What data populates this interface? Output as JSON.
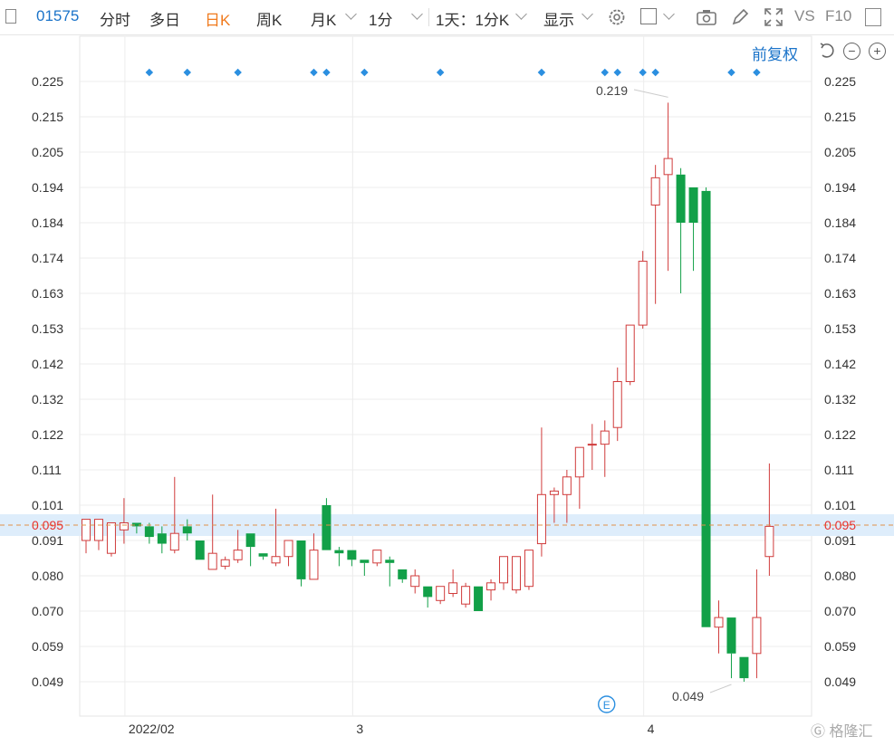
{
  "toolbar": {
    "code": "01575",
    "tabs": [
      "分时",
      "多日",
      "日K",
      "周K",
      "月K"
    ],
    "active_tab": "日K",
    "period": "1分",
    "range": "1天：1分K",
    "display": "显示",
    "vs": "VS",
    "f10": "F10"
  },
  "adjust_label": "前复权",
  "watermark": "格隆汇",
  "colors": {
    "up": "#d03b3b",
    "down": "#12a048",
    "grid": "#ececec",
    "current": "#e8322e",
    "marker": "#2b8fe0"
  },
  "chart_data": {
    "type": "candlestick",
    "y_ticks": [
      "0.225",
      "0.215",
      "0.205",
      "0.194",
      "0.184",
      "0.174",
      "0.163",
      "0.153",
      "0.142",
      "0.132",
      "0.122",
      "0.111",
      "0.101",
      "0.091",
      "0.080",
      "0.070",
      "0.059",
      "0.049"
    ],
    "x_labels": [
      {
        "label": "2022/02",
        "index": 3
      },
      {
        "label": "3",
        "index": 21
      },
      {
        "label": "4",
        "index": 44
      }
    ],
    "current_price": "0.095",
    "annotations": [
      {
        "text": "0.219",
        "index": 46
      },
      {
        "text": "0.049",
        "index": 51
      }
    ],
    "event_marker": {
      "text": "E",
      "index": 42
    },
    "marker_indices": [
      5,
      8,
      12,
      18,
      19,
      22,
      28,
      36,
      41,
      42,
      44,
      45,
      51,
      53
    ],
    "candles": [
      {
        "o": 0.091,
        "h": 0.097,
        "l": 0.087,
        "c": 0.097
      },
      {
        "o": 0.091,
        "h": 0.097,
        "l": 0.088,
        "c": 0.097
      },
      {
        "o": 0.087,
        "h": 0.096,
        "l": 0.086,
        "c": 0.096
      },
      {
        "o": 0.094,
        "h": 0.103,
        "l": 0.09,
        "c": 0.096
      },
      {
        "o": 0.096,
        "h": 0.096,
        "l": 0.093,
        "c": 0.095
      },
      {
        "o": 0.095,
        "h": 0.096,
        "l": 0.09,
        "c": 0.092
      },
      {
        "o": 0.093,
        "h": 0.095,
        "l": 0.087,
        "c": 0.09
      },
      {
        "o": 0.088,
        "h": 0.109,
        "l": 0.087,
        "c": 0.093
      },
      {
        "o": 0.095,
        "h": 0.097,
        "l": 0.091,
        "c": 0.093
      },
      {
        "o": 0.091,
        "h": 0.091,
        "l": 0.085,
        "c": 0.085
      },
      {
        "o": 0.082,
        "h": 0.104,
        "l": 0.082,
        "c": 0.087
      },
      {
        "o": 0.083,
        "h": 0.086,
        "l": 0.082,
        "c": 0.085
      },
      {
        "o": 0.085,
        "h": 0.094,
        "l": 0.084,
        "c": 0.088
      },
      {
        "o": 0.093,
        "h": 0.093,
        "l": 0.083,
        "c": 0.089
      },
      {
        "o": 0.087,
        "h": 0.087,
        "l": 0.085,
        "c": 0.086
      },
      {
        "o": 0.084,
        "h": 0.1,
        "l": 0.083,
        "c": 0.086
      },
      {
        "o": 0.086,
        "h": 0.091,
        "l": 0.083,
        "c": 0.091
      },
      {
        "o": 0.091,
        "h": 0.091,
        "l": 0.077,
        "c": 0.079
      },
      {
        "o": 0.079,
        "h": 0.093,
        "l": 0.079,
        "c": 0.088
      },
      {
        "o": 0.101,
        "h": 0.103,
        "l": 0.088,
        "c": 0.088
      },
      {
        "o": 0.088,
        "h": 0.089,
        "l": 0.083,
        "c": 0.087
      },
      {
        "o": 0.088,
        "h": 0.088,
        "l": 0.083,
        "c": 0.085
      },
      {
        "o": 0.085,
        "h": 0.085,
        "l": 0.08,
        "c": 0.084
      },
      {
        "o": 0.084,
        "h": 0.088,
        "l": 0.083,
        "c": 0.088
      },
      {
        "o": 0.085,
        "h": 0.086,
        "l": 0.077,
        "c": 0.084
      },
      {
        "o": 0.082,
        "h": 0.082,
        "l": 0.078,
        "c": 0.079
      },
      {
        "o": 0.077,
        "h": 0.082,
        "l": 0.075,
        "c": 0.08
      },
      {
        "o": 0.077,
        "h": 0.077,
        "l": 0.071,
        "c": 0.074
      },
      {
        "o": 0.073,
        "h": 0.077,
        "l": 0.072,
        "c": 0.077
      },
      {
        "o": 0.075,
        "h": 0.082,
        "l": 0.074,
        "c": 0.078
      },
      {
        "o": 0.072,
        "h": 0.078,
        "l": 0.071,
        "c": 0.077
      },
      {
        "o": 0.077,
        "h": 0.077,
        "l": 0.07,
        "c": 0.07
      },
      {
        "o": 0.076,
        "h": 0.079,
        "l": 0.073,
        "c": 0.078
      },
      {
        "o": 0.078,
        "h": 0.086,
        "l": 0.076,
        "c": 0.086
      },
      {
        "o": 0.076,
        "h": 0.086,
        "l": 0.075,
        "c": 0.086
      },
      {
        "o": 0.077,
        "h": 0.088,
        "l": 0.076,
        "c": 0.088
      },
      {
        "o": 0.09,
        "h": 0.124,
        "l": 0.086,
        "c": 0.104
      },
      {
        "o": 0.104,
        "h": 0.106,
        "l": 0.096,
        "c": 0.105
      },
      {
        "o": 0.104,
        "h": 0.111,
        "l": 0.096,
        "c": 0.109
      },
      {
        "o": 0.109,
        "h": 0.118,
        "l": 0.1,
        "c": 0.118
      },
      {
        "o": 0.119,
        "h": 0.125,
        "l": 0.111,
        "c": 0.119
      },
      {
        "o": 0.119,
        "h": 0.126,
        "l": 0.109,
        "c": 0.123
      },
      {
        "o": 0.124,
        "h": 0.141,
        "l": 0.12,
        "c": 0.137
      },
      {
        "o": 0.137,
        "h": 0.154,
        "l": 0.136,
        "c": 0.154
      },
      {
        "o": 0.154,
        "h": 0.176,
        "l": 0.153,
        "c": 0.173
      },
      {
        "o": 0.189,
        "h": 0.201,
        "l": 0.16,
        "c": 0.197
      },
      {
        "o": 0.198,
        "h": 0.219,
        "l": 0.17,
        "c": 0.203
      },
      {
        "o": 0.198,
        "h": 0.2,
        "l": 0.163,
        "c": 0.184
      },
      {
        "o": 0.194,
        "h": 0.194,
        "l": 0.17,
        "c": 0.184
      },
      {
        "o": 0.193,
        "h": 0.194,
        "l": 0.065,
        "c": 0.065
      },
      {
        "o": 0.065,
        "h": 0.073,
        "l": 0.057,
        "c": 0.068
      },
      {
        "o": 0.068,
        "h": 0.068,
        "l": 0.05,
        "c": 0.057
      },
      {
        "o": 0.056,
        "h": 0.056,
        "l": 0.049,
        "c": 0.05
      },
      {
        "o": 0.057,
        "h": 0.082,
        "l": 0.05,
        "c": 0.068
      },
      {
        "o": 0.086,
        "h": 0.113,
        "l": 0.08,
        "c": 0.095
      }
    ]
  }
}
